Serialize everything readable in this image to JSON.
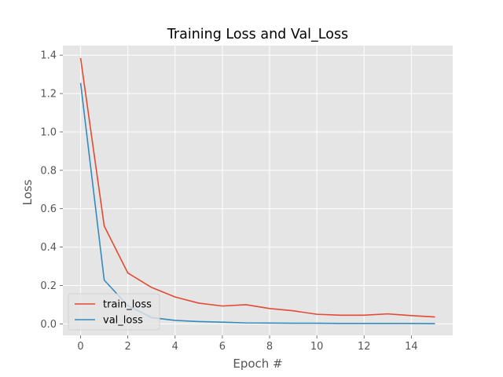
{
  "chart_data": {
    "type": "line",
    "title": "Training Loss and Val_Loss",
    "xlabel": "Epoch #",
    "ylabel": "Loss",
    "x": [
      0,
      1,
      2,
      3,
      4,
      5,
      6,
      7,
      8,
      9,
      10,
      11,
      12,
      13,
      14,
      15
    ],
    "xlim": [
      -0.75,
      15.75
    ],
    "ylim": [
      -0.06,
      1.45
    ],
    "xticks": [
      0,
      2,
      4,
      6,
      8,
      10,
      12,
      14
    ],
    "yticks": [
      0.0,
      0.2,
      0.4,
      0.6,
      0.8,
      1.0,
      1.2,
      1.4
    ],
    "ytick_labels": [
      "0.0",
      "0.2",
      "0.4",
      "0.6",
      "0.8",
      "1.0",
      "1.2",
      "1.4"
    ],
    "grid": true,
    "legend_placement": "lower-left",
    "series": [
      {
        "name": "train_loss",
        "color": "#E24A33",
        "values": [
          1.385,
          0.51,
          0.265,
          0.19,
          0.14,
          0.108,
          0.093,
          0.1,
          0.08,
          0.068,
          0.05,
          0.045,
          0.045,
          0.052,
          0.043,
          0.036
        ]
      },
      {
        "name": "val_loss",
        "color": "#348ABD",
        "values": [
          1.255,
          0.228,
          0.095,
          0.033,
          0.018,
          0.012,
          0.009,
          0.005,
          0.004,
          0.003,
          0.003,
          0.002,
          0.002,
          0.002,
          0.002,
          0.001
        ]
      }
    ],
    "colors": {
      "plot_background": "#E5E5E5",
      "grid": "#FFFFFF"
    }
  }
}
